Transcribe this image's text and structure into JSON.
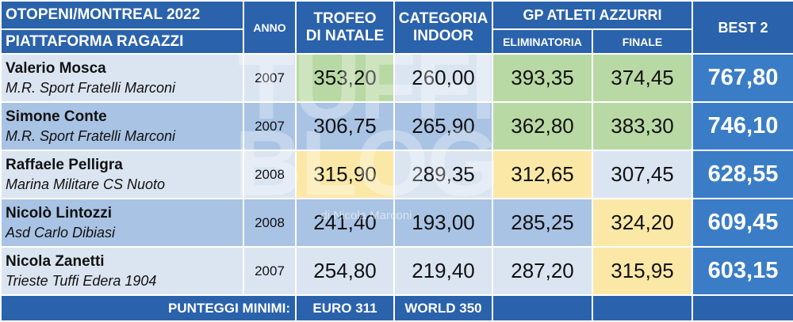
{
  "header": {
    "title": "OTOPENI/MONTREAL 2022",
    "subtitle": "PIATTAFORMA RAGAZZI",
    "col_anno": "ANNO",
    "col_trofeo_l1": "TROFEO",
    "col_trofeo_l2": "DI NATALE",
    "col_categoria_l1": "CATEGORIA",
    "col_categoria_l2": "INDOOR",
    "col_gp": "GP ATLETI AZZURRI",
    "col_eliminatoria": "ELIMINATORIA",
    "col_finale": "FINALE",
    "col_best": "BEST 2"
  },
  "colors": {
    "header_blue": "#2a62ac",
    "best_blue": "#3a7dc6",
    "cell_light": "#dbe5f2",
    "cell_mid": "#a9c3e4",
    "highlight_green": "#b9d9a4",
    "highlight_yellow": "#fbe8a6"
  },
  "athletes": [
    {
      "name": "Valerio Mosca",
      "club": "M.R. Sport Fratelli Marconi",
      "year": "2007",
      "trofeo": "353,20",
      "categoria": "260,00",
      "eliminatoria": "393,35",
      "finale": "374,45",
      "best": "767,80",
      "bg": [
        "#dbe5f2",
        "#dbe5f2",
        "#b9d9a4",
        "#dbe5f2",
        "#b9d9a4",
        "#b9d9a4"
      ]
    },
    {
      "name": "Simone Conte",
      "club": "M.R. Sport Fratelli Marconi",
      "year": "2007",
      "trofeo": "306,75",
      "categoria": "265,90",
      "eliminatoria": "362,80",
      "finale": "383,30",
      "best": "746,10",
      "bg": [
        "#a9c3e4",
        "#a9c3e4",
        "#a9c3e4",
        "#a9c3e4",
        "#b9d9a4",
        "#b9d9a4"
      ]
    },
    {
      "name": "Raffaele Pelligra",
      "club": "Marina Militare CS Nuoto",
      "year": "2008",
      "trofeo": "315,90",
      "categoria": "289,35",
      "eliminatoria": "312,65",
      "finale": "307,45",
      "best": "628,55",
      "bg": [
        "#dbe5f2",
        "#dbe5f2",
        "#fbe8a6",
        "#dbe5f2",
        "#fbe8a6",
        "#dbe5f2"
      ]
    },
    {
      "name": "Nicolò Lintozzi",
      "club": "Asd Carlo Dibiasi",
      "year": "2008",
      "trofeo": "241,40",
      "categoria": "193,00",
      "eliminatoria": "285,25",
      "finale": "324,20",
      "best": "609,45",
      "bg": [
        "#a9c3e4",
        "#a9c3e4",
        "#a9c3e4",
        "#a9c3e4",
        "#a9c3e4",
        "#fbe8a6"
      ]
    },
    {
      "name": "Nicola Zanetti",
      "club": "Trieste Tuffi Edera 1904",
      "year": "2007",
      "trofeo": "254,80",
      "categoria": "219,40",
      "eliminatoria": "287,20",
      "finale": "315,95",
      "best": "603,15",
      "bg": [
        "#dbe5f2",
        "#dbe5f2",
        "#dbe5f2",
        "#dbe5f2",
        "#dbe5f2",
        "#fbe8a6"
      ]
    }
  ],
  "footer": {
    "label": "PUNTEGGI MINIMI:",
    "euro": "EURO 311",
    "world": "WORLD 350"
  },
  "watermark": {
    "big": "TUFFI BLOG",
    "small": "di Nicola Marconi"
  }
}
